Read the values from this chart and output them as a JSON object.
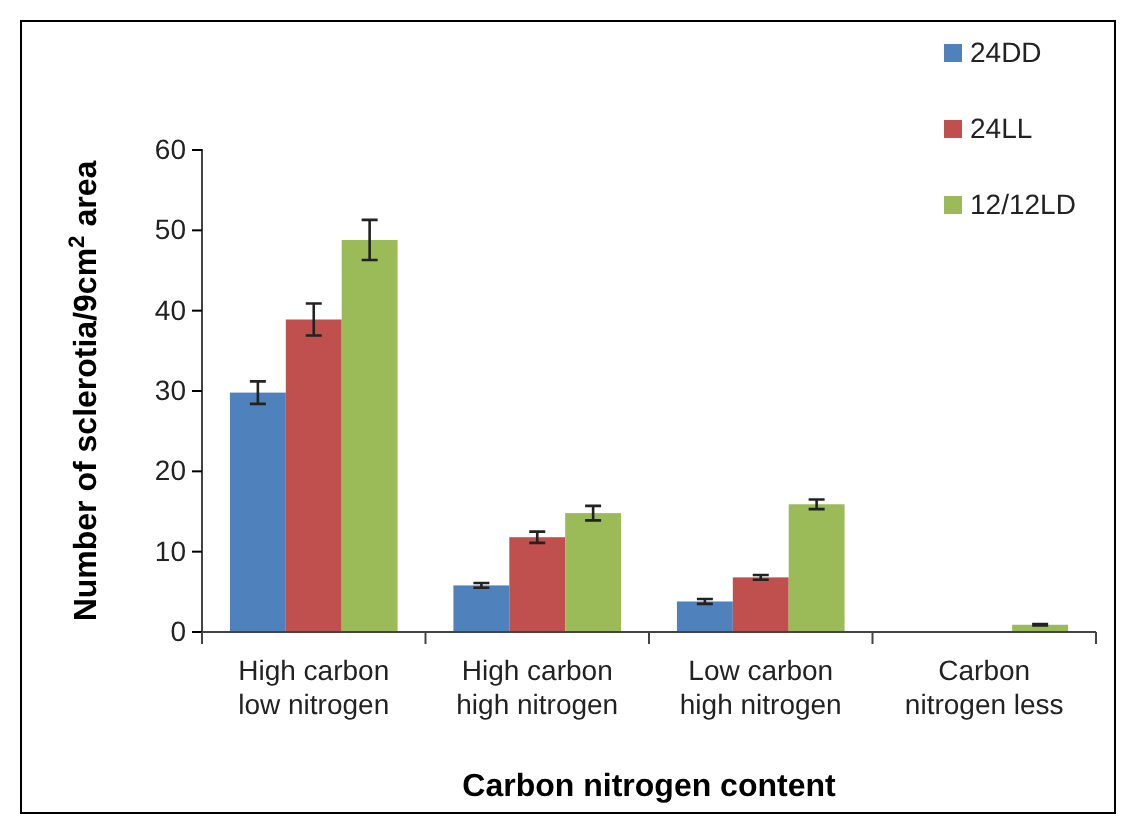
{
  "chart_data": {
    "type": "bar",
    "xlabel": "Carbon nitrogen content",
    "ylabel": "Number of sclerotia/9cm$^{2}$ area",
    "categories": [
      "High carbon low nitrogen",
      "High carbon high nitrogen",
      "Low carbon high nitrogen",
      "Carbon nitrogen less"
    ],
    "series": [
      {
        "name": "24DD",
        "color": "#4f81bd",
        "values": [
          29.8,
          5.8,
          3.8,
          0
        ],
        "errors": [
          1.4,
          0.3,
          0.3,
          null
        ]
      },
      {
        "name": "24LL",
        "color": "#c0504d",
        "values": [
          38.9,
          11.8,
          6.8,
          0
        ],
        "errors": [
          2,
          0.7,
          0.3,
          null
        ]
      },
      {
        "name": "12/12LD",
        "color": "#9bbb59",
        "values": [
          48.8,
          14.8,
          15.9,
          0.9
        ],
        "errors": [
          2.5,
          0.9,
          0.6,
          0.1
        ]
      }
    ],
    "ylim": [
      0,
      60
    ],
    "yticks": [
      0,
      10,
      20,
      30,
      40,
      50,
      60
    ],
    "grid": false,
    "legend": "top right"
  }
}
